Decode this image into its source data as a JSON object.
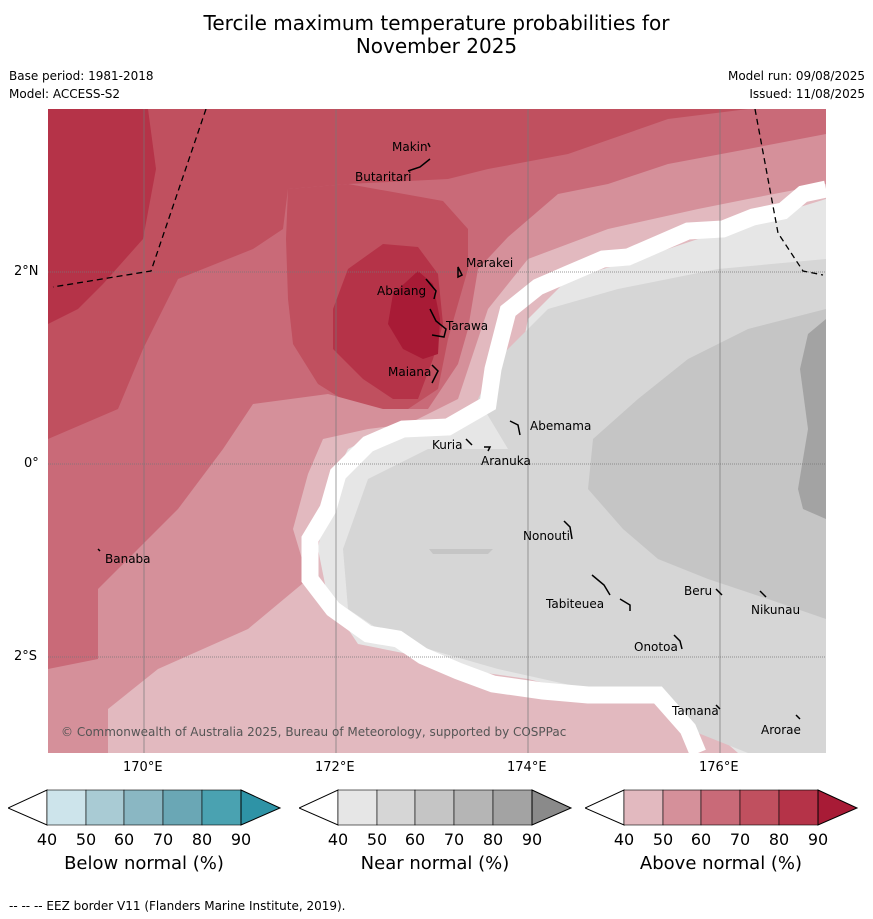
{
  "title": {
    "line1": "Tercile maximum temperature probabilities for",
    "line2": "November 2025"
  },
  "meta": {
    "base_period": "Base period: 1981-2018",
    "model": "Model: ACCESS-S2",
    "model_run": "Model run: 09/08/2025",
    "issued": "Issued: 11/08/2025"
  },
  "map": {
    "copyright": "© Commonwealth of Australia 2025, Bureau of Meteorology, supported by COSPPac",
    "lat_labels": [
      "2°N",
      "0°",
      "2°S"
    ],
    "lon_labels": [
      "170°E",
      "172°E",
      "174°E",
      "176°E"
    ],
    "places": [
      "Makin",
      "Butaritari",
      "Marakei",
      "Abaiang",
      "Tarawa",
      "Maiana",
      "Abemama",
      "Kuria",
      "Aranuka",
      "Nonouti",
      "Banaba",
      "Beru",
      "Tabiteuea",
      "Nikunau",
      "Onotoa",
      "Tamana",
      "Arorae"
    ],
    "colors": {
      "above": [
        "#e2b9bf",
        "#d5909a",
        "#c96a78",
        "#c0505f",
        "#b53348",
        "#a81b36"
      ],
      "near": [
        "#e6e6e6",
        "#d6d6d6",
        "#c5c5c5",
        "#b5b5b5",
        "#a3a3a3",
        "#8a8a8a"
      ],
      "below": [
        "#cde4eb",
        "#a9cbd4",
        "#8ab7c3",
        "#6aa7b5",
        "#4aa2b1",
        "#2e93a6"
      ]
    }
  },
  "colorbars": [
    {
      "label": "Below normal (%)",
      "ticks": [
        "40",
        "50",
        "60",
        "70",
        "80",
        "90"
      ]
    },
    {
      "label": "Near normal (%)",
      "ticks": [
        "40",
        "50",
        "60",
        "70",
        "80",
        "90"
      ]
    },
    {
      "label": "Above normal (%)",
      "ticks": [
        "40",
        "50",
        "60",
        "70",
        "80",
        "90"
      ]
    }
  ],
  "footnote": "-- -- -- EEZ border V11 (Flanders Marine Institute, 2019)."
}
